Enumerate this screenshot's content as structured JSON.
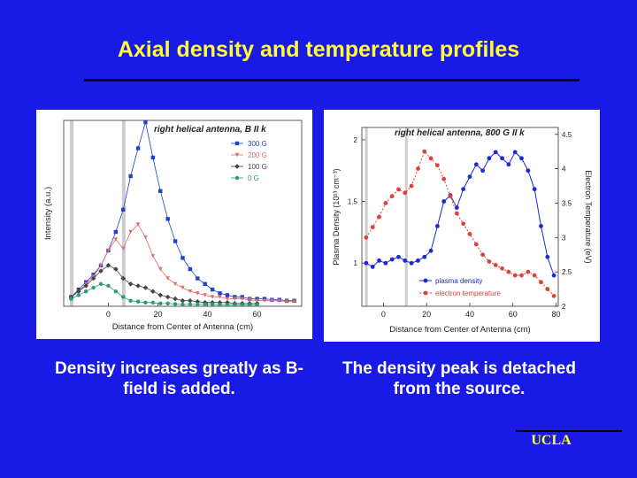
{
  "slide": {
    "title": "Axial density and temperature profiles",
    "caption_left": "Density increases greatly as B-field is added.",
    "caption_right": "The density peak is detached from the source.",
    "footer": "UCLA"
  },
  "colors": {
    "background": "#1a1ae6",
    "title": "#ffff33",
    "series_300G": "#1f3fcf",
    "series_200G": "#e06a6a",
    "series_100G": "#444444",
    "series_0G": "#2a9a7a",
    "plasma_density": "#1a2ad0",
    "electron_temperature": "#e0403a"
  },
  "chart_data": [
    {
      "type": "line",
      "title": "right helical antenna, B II k",
      "xlabel": "Distance from Center of Antenna (cm)",
      "ylabel": "Intensity (a.u.)",
      "xlim": [
        -18,
        78
      ],
      "ylim": [
        0,
        1
      ],
      "xticks": [
        0,
        20,
        40,
        60
      ],
      "legend_position": "top-right",
      "grid": false,
      "series": [
        {
          "name": "300 G",
          "marker": "square",
          "x": [
            -15,
            -12,
            -9,
            -6,
            -3,
            0,
            3,
            6,
            9,
            12,
            15,
            18,
            21,
            24,
            27,
            30,
            33,
            36,
            39,
            42,
            45,
            48,
            51,
            54,
            57,
            60,
            63,
            66,
            69,
            72,
            75
          ],
          "y": [
            0.05,
            0.09,
            0.13,
            0.17,
            0.22,
            0.3,
            0.4,
            0.52,
            0.7,
            0.85,
            0.99,
            0.8,
            0.62,
            0.47,
            0.35,
            0.26,
            0.2,
            0.15,
            0.12,
            0.09,
            0.07,
            0.06,
            0.05,
            0.05,
            0.04,
            0.04,
            0.04,
            0.035,
            0.035,
            0.03,
            0.03
          ]
        },
        {
          "name": "200 G",
          "marker": "triangle",
          "x": [
            -15,
            -12,
            -9,
            -6,
            -3,
            0,
            3,
            6,
            9,
            12,
            15,
            18,
            21,
            24,
            27,
            30,
            33,
            36,
            39,
            42,
            45,
            48,
            51,
            54,
            57,
            60,
            63,
            66,
            69,
            72,
            75
          ],
          "y": [
            0.05,
            0.08,
            0.12,
            0.16,
            0.22,
            0.3,
            0.36,
            0.31,
            0.4,
            0.44,
            0.37,
            0.27,
            0.2,
            0.15,
            0.12,
            0.1,
            0.08,
            0.07,
            0.06,
            0.05,
            0.05,
            0.04,
            0.04,
            0.04,
            0.035,
            0.03,
            0.03,
            0.03,
            0.03,
            0.025,
            0.025
          ]
        },
        {
          "name": "100 G",
          "marker": "diamond",
          "x": [
            -15,
            -12,
            -9,
            -6,
            -3,
            0,
            3,
            6,
            9,
            12,
            15,
            18,
            21,
            24,
            27,
            30,
            33,
            36,
            39,
            42,
            45,
            48,
            51,
            54,
            57,
            60
          ],
          "y": [
            0.05,
            0.08,
            0.11,
            0.15,
            0.19,
            0.22,
            0.2,
            0.15,
            0.12,
            0.11,
            0.1,
            0.08,
            0.06,
            0.05,
            0.04,
            0.03,
            0.03,
            0.025,
            0.02,
            0.02,
            0.02,
            0.02,
            0.015,
            0.015,
            0.015,
            0.015
          ]
        },
        {
          "name": "0 G",
          "marker": "circle",
          "x": [
            -15,
            -12,
            -9,
            -6,
            -3,
            0,
            3,
            6,
            9,
            12,
            15,
            18,
            21,
            24,
            27,
            30,
            33,
            36,
            39,
            42,
            45,
            48,
            51,
            54,
            57,
            60
          ],
          "y": [
            0.04,
            0.06,
            0.08,
            0.1,
            0.12,
            0.11,
            0.08,
            0.05,
            0.03,
            0.025,
            0.02,
            0.02,
            0.015,
            0.015,
            0.012,
            0.01,
            0.01,
            0.01,
            0.01,
            0.01,
            0.008,
            0.008,
            0.008,
            0.008,
            0.008,
            0.008
          ]
        }
      ]
    },
    {
      "type": "line",
      "title": "right helical antenna, 800 G II k",
      "xlabel": "Distance from Center of Antenna (cm)",
      "ylabel": "Plasma Density (10¹³ cm⁻³)",
      "y2label": "Electron Temperature (eV)",
      "xlim": [
        -10,
        81
      ],
      "ylim": [
        0.65,
        2.1
      ],
      "y2lim": [
        2,
        4.6
      ],
      "xticks": [
        0,
        20,
        40,
        60,
        80
      ],
      "yticks": [
        1,
        1.5,
        2
      ],
      "y2ticks": [
        2,
        2.5,
        3,
        3.5,
        4,
        4.5
      ],
      "legend_position": "bottom-center",
      "grid": false,
      "series": [
        {
          "name": "plasma density",
          "axis": "left",
          "x": [
            -8,
            -5,
            -2,
            1,
            4,
            7,
            10,
            13,
            16,
            19,
            22,
            25,
            28,
            31,
            34,
            37,
            40,
            43,
            46,
            49,
            52,
            55,
            58,
            61,
            64,
            67,
            70,
            73,
            76,
            79
          ],
          "y": [
            1.0,
            0.97,
            1.02,
            1.0,
            1.03,
            1.05,
            1.02,
            1.0,
            1.02,
            1.05,
            1.1,
            1.3,
            1.5,
            1.55,
            1.45,
            1.6,
            1.7,
            1.8,
            1.75,
            1.85,
            1.9,
            1.85,
            1.8,
            1.9,
            1.85,
            1.75,
            1.6,
            1.3,
            1.05,
            0.9
          ]
        },
        {
          "name": "electron temperature",
          "axis": "right",
          "x": [
            -8,
            -5,
            -2,
            1,
            4,
            7,
            10,
            13,
            16,
            19,
            22,
            25,
            28,
            31,
            34,
            37,
            40,
            43,
            46,
            49,
            52,
            55,
            58,
            61,
            64,
            67,
            70,
            73,
            76,
            79
          ],
          "y": [
            3.0,
            3.15,
            3.3,
            3.5,
            3.6,
            3.7,
            3.65,
            3.75,
            4.0,
            4.25,
            4.15,
            4.05,
            3.85,
            3.6,
            3.35,
            3.2,
            3.05,
            2.9,
            2.75,
            2.65,
            2.6,
            2.55,
            2.5,
            2.45,
            2.45,
            2.5,
            2.45,
            2.35,
            2.25,
            2.15
          ]
        }
      ]
    }
  ]
}
